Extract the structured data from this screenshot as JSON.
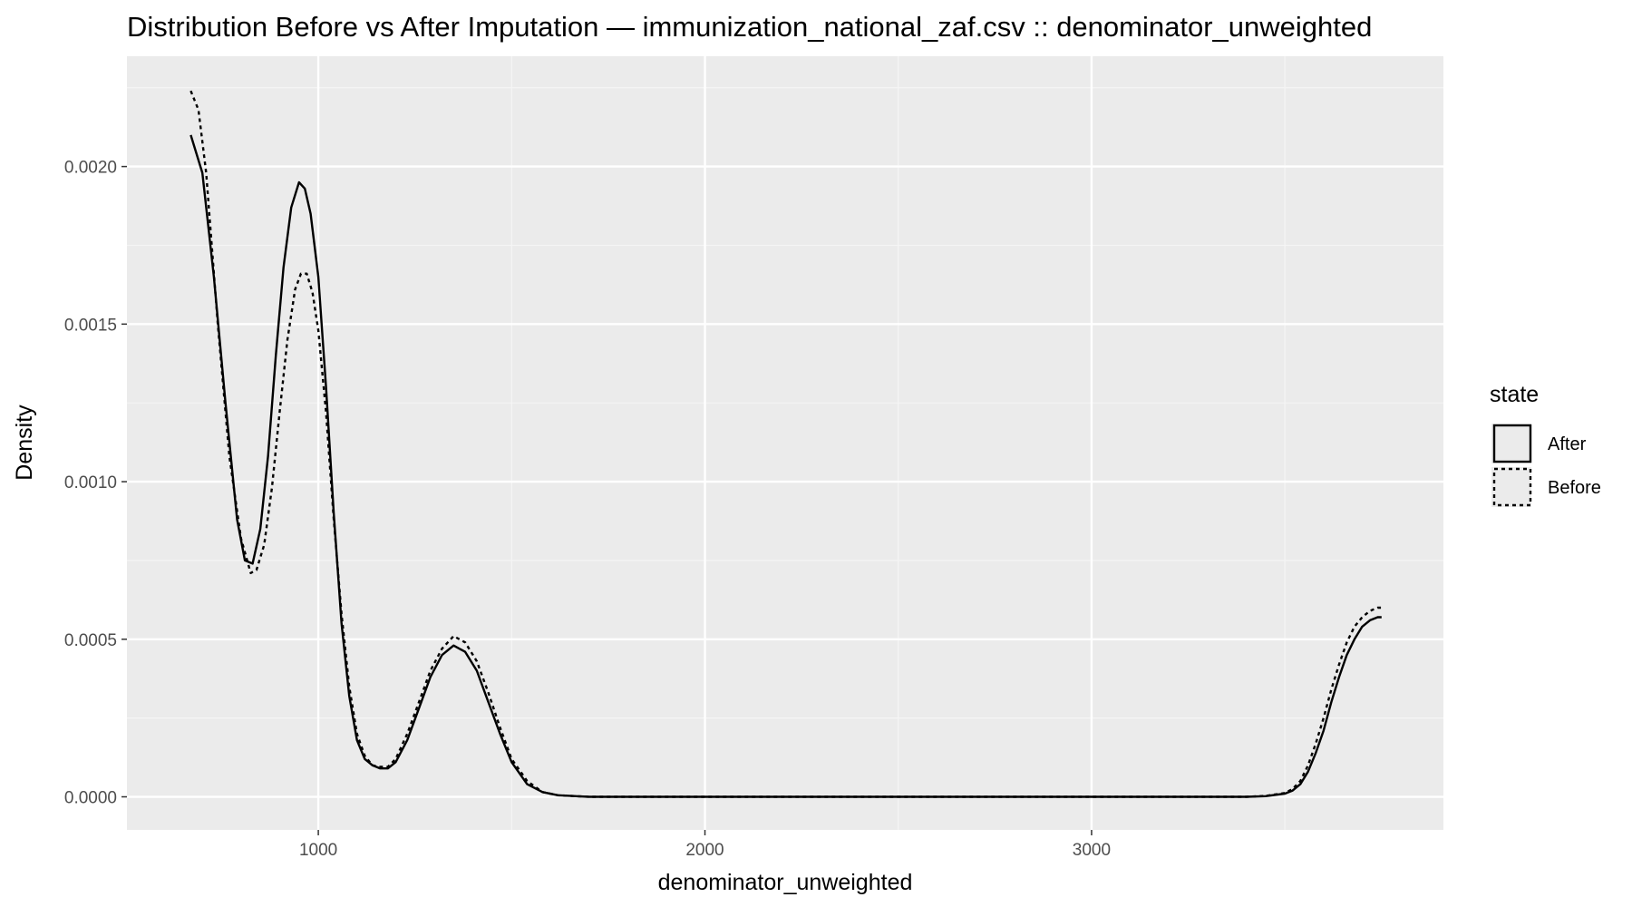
{
  "chart_data": {
    "type": "line",
    "title": "Distribution Before vs After Imputation — immunization_national_zaf.csv :: denominator_unweighted",
    "xlabel": "denominator_unweighted",
    "ylabel": "Density",
    "xlim": [
      505,
      3910
    ],
    "ylim": [
      -0.000105,
      0.00235
    ],
    "x_ticks": [
      1000,
      2000,
      3000
    ],
    "x_minor_ticks": [
      1500,
      2500,
      3500
    ],
    "x_tick_labels": [
      "1000",
      "2000",
      "3000"
    ],
    "y_ticks": [
      0.0,
      0.0005,
      0.001,
      0.0015,
      0.002
    ],
    "y_minor_ticks": [
      0.00025,
      0.00075,
      0.00125,
      0.00175,
      0.00225
    ],
    "y_tick_labels": [
      "0.0000",
      "0.0005",
      "0.0010",
      "0.0015",
      "0.0020"
    ],
    "grid": true,
    "legend": {
      "title": "state",
      "position": "right",
      "entries": [
        {
          "label": "After",
          "linetype": "solid"
        },
        {
          "label": "Before",
          "linetype": "dashed"
        }
      ]
    },
    "series": [
      {
        "name": "After",
        "linetype": "solid",
        "color": "#000000",
        "x": [
          670,
          700,
          730,
          760,
          790,
          810,
          830,
          850,
          870,
          890,
          910,
          930,
          950,
          965,
          980,
          1000,
          1020,
          1040,
          1060,
          1080,
          1100,
          1120,
          1140,
          1160,
          1180,
          1200,
          1230,
          1260,
          1290,
          1320,
          1350,
          1380,
          1410,
          1440,
          1470,
          1500,
          1540,
          1580,
          1620,
          1700,
          2000,
          2500,
          3000,
          3400,
          3450,
          3500,
          3520,
          3540,
          3560,
          3580,
          3600,
          3620,
          3640,
          3660,
          3680,
          3700,
          3720,
          3740,
          3750
        ],
        "y": [
          0.0021,
          0.00198,
          0.00165,
          0.00125,
          0.00088,
          0.00075,
          0.00074,
          0.00085,
          0.00108,
          0.0014,
          0.00168,
          0.00187,
          0.00195,
          0.00193,
          0.00185,
          0.00165,
          0.0013,
          0.0009,
          0.00055,
          0.00032,
          0.00018,
          0.00012,
          0.0001,
          9e-05,
          9e-05,
          0.00011,
          0.00018,
          0.00028,
          0.00038,
          0.00045,
          0.00048,
          0.00046,
          0.0004,
          0.0003,
          0.0002,
          0.00011,
          4e-05,
          1.5e-05,
          5e-06,
          0.0,
          0.0,
          0.0,
          0.0,
          0.0,
          2e-06,
          1e-05,
          2e-05,
          4e-05,
          8e-05,
          0.00014,
          0.00021,
          0.0003,
          0.00038,
          0.00045,
          0.0005,
          0.00054,
          0.00056,
          0.00057,
          0.00057
        ]
      },
      {
        "name": "Before",
        "linetype": "dashed",
        "color": "#000000",
        "x": [
          670,
          690,
          710,
          740,
          770,
          800,
          825,
          840,
          860,
          880,
          900,
          920,
          940,
          955,
          970,
          985,
          1000,
          1020,
          1040,
          1060,
          1080,
          1100,
          1120,
          1140,
          1160,
          1180,
          1200,
          1230,
          1260,
          1290,
          1320,
          1350,
          1380,
          1410,
          1440,
          1470,
          1500,
          1540,
          1580,
          1620,
          1700,
          2000,
          2500,
          3000,
          3400,
          3450,
          3500,
          3520,
          3540,
          3560,
          3580,
          3600,
          3620,
          3640,
          3660,
          3680,
          3700,
          3720,
          3740,
          3750
        ],
        "y": [
          0.00224,
          0.00218,
          0.00198,
          0.0015,
          0.00108,
          0.00082,
          0.00071,
          0.00072,
          0.0008,
          0.00098,
          0.00122,
          0.00145,
          0.00161,
          0.00166,
          0.00166,
          0.0016,
          0.00148,
          0.00122,
          0.00088,
          0.00058,
          0.00035,
          0.0002,
          0.00013,
          0.0001,
          9.5e-05,
          9.5e-05,
          0.00012,
          0.0002,
          0.0003,
          0.0004,
          0.00047,
          0.00051,
          0.00049,
          0.00043,
          0.00033,
          0.00022,
          0.00012,
          5e-05,
          1.5e-05,
          5e-06,
          0.0,
          0.0,
          0.0,
          0.0,
          0.0,
          3e-06,
          1.2e-05,
          2.5e-05,
          5e-05,
          0.0001,
          0.00017,
          0.00025,
          0.00034,
          0.00042,
          0.00049,
          0.00054,
          0.00057,
          0.00059,
          0.0006,
          0.0006
        ]
      }
    ]
  },
  "colors": {
    "panel_background": "#ebebeb",
    "grid_major": "#ffffff",
    "grid_minor": "#f5f5f5",
    "line": "#000000",
    "tick_label": "#4d4d4d",
    "legend_key_fill": "#ebebeb"
  }
}
